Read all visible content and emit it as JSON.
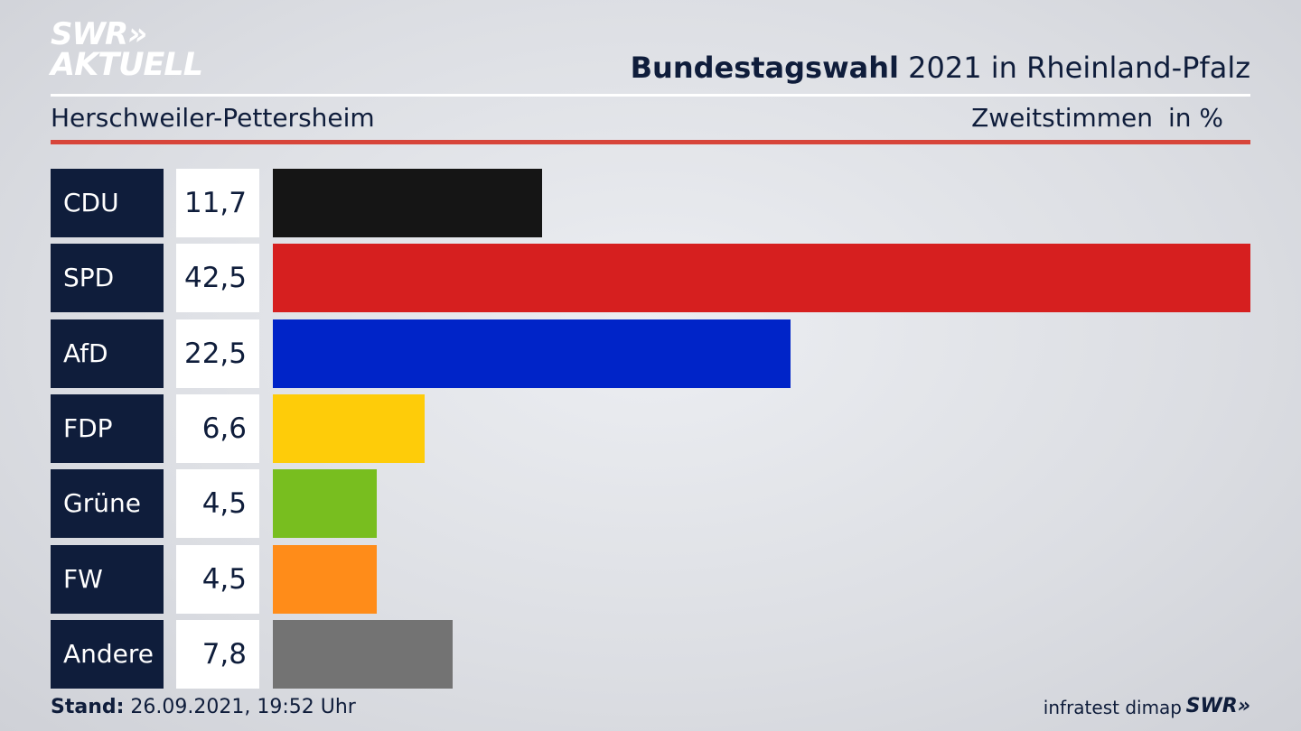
{
  "logo": {
    "line1": "SWR»",
    "line2": "AKTUELL"
  },
  "header": {
    "title_bold": "Bundestagswahl",
    "title_rest": " 2021 in Rheinland-Pfalz",
    "region": "Herschweiler-Pettersheim",
    "vote_type": "Zweitstimmen",
    "unit": "in %"
  },
  "chart_data": {
    "type": "bar",
    "orientation": "horizontal",
    "categories": [
      "CDU",
      "SPD",
      "AfD",
      "FDP",
      "Grüne",
      "FW",
      "Andere"
    ],
    "values": [
      11.7,
      42.5,
      22.5,
      6.6,
      4.5,
      4.5,
      7.8
    ],
    "value_labels": [
      "11,7",
      "42,5",
      "22,5",
      "6,6",
      "4,5",
      "4,5",
      "7,8"
    ],
    "colors": [
      "#151515",
      "#d61f1f",
      "#0024c8",
      "#fecc09",
      "#78be1f",
      "#ff8c19",
      "#737373"
    ],
    "xlim": [
      0,
      42.5
    ]
  },
  "footer": {
    "stand_label": "Stand:",
    "stand_value": " 26.09.2021, 19:52 Uhr",
    "source": "infratest dimap",
    "brand": "SWR»"
  }
}
